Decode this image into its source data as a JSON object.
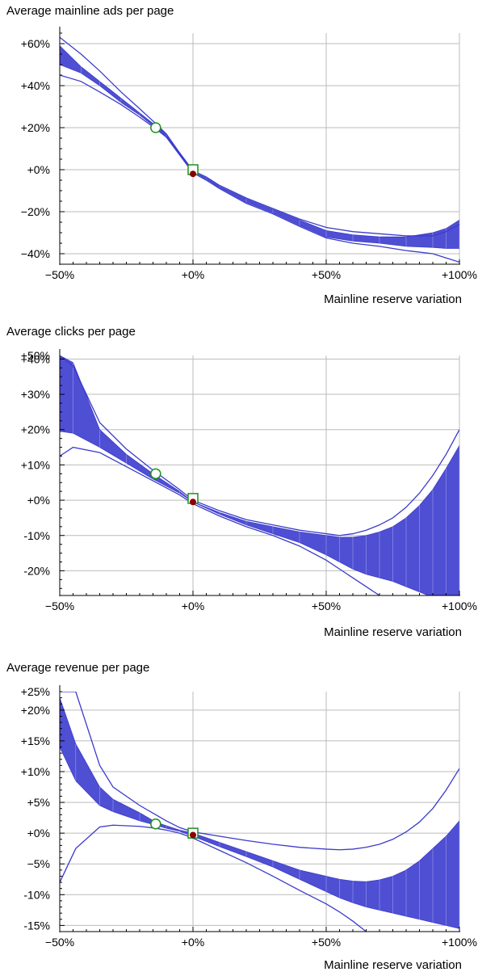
{
  "chart_data": [
    {
      "type": "area",
      "title": "Average mainline ads per page",
      "xlabel": "Mainline reserve variation",
      "ylabel": "",
      "xlim": [
        -50,
        100
      ],
      "ylim": [
        -45,
        65
      ],
      "x_ticks": [
        -50,
        0,
        50,
        100
      ],
      "x_tick_labels": [
        "−50%",
        "+0%",
        "+50%",
        "+100%"
      ],
      "y_ticks": [
        60,
        40,
        20,
        0,
        -20,
        -40
      ],
      "y_tick_labels": [
        "+60%",
        "+40%",
        "+20%",
        "+0%",
        "−20%",
        "−40%"
      ],
      "grid": true,
      "x": [
        -50,
        -42,
        -35,
        -27,
        -20,
        -14,
        -10,
        -5,
        0,
        5,
        10,
        20,
        30,
        40,
        50,
        60,
        70,
        80,
        90,
        95,
        100
      ],
      "band_upper": [
        59,
        49,
        42,
        34,
        27,
        21,
        17,
        8,
        -1,
        -4,
        -8,
        -14,
        -19,
        -24,
        -29,
        -31,
        -32,
        -32,
        -30,
        -28,
        -24
      ],
      "band_lower": [
        50,
        46,
        40,
        32,
        26,
        20,
        16,
        7.5,
        -1,
        -4.5,
        -8.5,
        -15.5,
        -20.5,
        -26.5,
        -32,
        -34,
        -35,
        -36.5,
        -37,
        -37.5,
        -37.5
      ],
      "outer_upper": [
        63,
        55,
        47,
        37,
        29,
        22,
        17,
        8,
        -0.5,
        -3.5,
        -7.5,
        -13.5,
        -18.5,
        -23.5,
        -27.5,
        -29.5,
        -30.5,
        -31.5,
        -31.5,
        -29.5,
        -26
      ],
      "outer_lower": [
        45,
        42,
        37,
        31,
        25,
        19.5,
        15.5,
        7,
        -1.5,
        -5,
        -9,
        -16,
        -21,
        -27,
        -32.5,
        -35,
        -36.5,
        -38.5,
        -40,
        -42,
        -44
      ],
      "marker_open_circle": {
        "x": -14,
        "y": 20
      },
      "marker_open_square": {
        "x": 0,
        "y": 0
      },
      "marker_filled_dot": {
        "x": 0,
        "y": -2
      },
      "colors": {
        "band": "#4f4fd4",
        "line": "#3b3bcc",
        "open_circle": "#1f8f1f",
        "open_square": "#1f8f1f",
        "filled_dot": "#8b0000",
        "grid": "#bbbbbb"
      }
    },
    {
      "type": "area",
      "title": "Average clicks per page",
      "xlabel": "Mainline reserve variation",
      "ylabel": "",
      "xlim": [
        -50,
        100
      ],
      "ylim": [
        -27,
        41
      ],
      "x_ticks": [
        -50,
        0,
        50,
        100
      ],
      "x_tick_labels": [
        "−50%",
        "+0%",
        "+50%",
        "+100%"
      ],
      "y_ticks": [
        40,
        30,
        20,
        10,
        0,
        -10,
        -20
      ],
      "y_tick_labels": [
        "+40%",
        "+30%",
        "+20%",
        "+10%",
        "+0%",
        "-10%",
        "-20%"
      ],
      "y_extra_label": "+50%",
      "grid": true,
      "x": [
        -50,
        -45,
        -35,
        -25,
        -15,
        -5,
        0,
        10,
        20,
        30,
        40,
        50,
        55,
        60,
        65,
        70,
        75,
        80,
        85,
        90,
        95,
        100
      ],
      "band_upper": [
        41,
        39,
        20,
        13,
        7.5,
        2.5,
        -0.5,
        -3.5,
        -6,
        -7.5,
        -9,
        -10,
        -10.5,
        -10.5,
        -10,
        -9,
        -7.5,
        -5,
        -1.5,
        3,
        9,
        15.5
      ],
      "band_lower": [
        19.5,
        19,
        15,
        10.5,
        6,
        2,
        -0.5,
        -4,
        -7,
        -9.5,
        -12,
        -15.5,
        -17.5,
        -19.5,
        -21,
        -22,
        -23,
        -24.5,
        -26,
        -27.5,
        -30,
        -33
      ],
      "outer_upper": [
        41,
        38,
        22,
        14.5,
        8.5,
        3,
        0,
        -3,
        -5.5,
        -7,
        -8.5,
        -9.5,
        -10,
        -9.5,
        -8.5,
        -7,
        -5,
        -2,
        2,
        7,
        13,
        20
      ],
      "outer_lower": [
        12.5,
        15,
        13.5,
        9.5,
        5.5,
        1.5,
        -1,
        -4.5,
        -7.5,
        -10,
        -13,
        -17,
        -19.5,
        -22,
        -24.5,
        -27,
        -30,
        -33.5,
        -37,
        -41,
        -45.5,
        -50
      ],
      "marker_open_circle": {
        "x": -14,
        "y": 7.5
      },
      "marker_open_square": {
        "x": 0,
        "y": 0.5
      },
      "marker_filled_dot": {
        "x": 0,
        "y": -0.5
      },
      "colors": {
        "band": "#4f4fd4",
        "line": "#3b3bcc",
        "open_circle": "#1f8f1f",
        "open_square": "#1f8f1f",
        "filled_dot": "#8b0000",
        "grid": "#bbbbbb"
      }
    },
    {
      "type": "area",
      "title": "Average revenue per page",
      "xlabel": "Mainline reserve variation",
      "ylabel": "",
      "xlim": [
        -50,
        100
      ],
      "ylim": [
        -16,
        23
      ],
      "x_ticks": [
        -50,
        0,
        50,
        100
      ],
      "x_tick_labels": [
        "−50%",
        "+0%",
        "+50%",
        "+100%"
      ],
      "y_ticks": [
        20,
        15,
        10,
        5,
        0,
        -5,
        -10,
        -15
      ],
      "y_tick_labels": [
        "+20%",
        "+15%",
        "+10%",
        "+5%",
        "+0%",
        "−5%",
        "-10%",
        "-15%"
      ],
      "y_extra_label": "+25%",
      "grid": true,
      "x": [
        -50,
        -44,
        -35,
        -30,
        -20,
        -14,
        -10,
        -5,
        0,
        10,
        20,
        30,
        40,
        50,
        55,
        60,
        65,
        70,
        75,
        80,
        85,
        90,
        95,
        100
      ],
      "band_upper": [
        22,
        14.5,
        7.5,
        5.5,
        3.3,
        1.8,
        1.2,
        0.5,
        0,
        -1.5,
        -3,
        -4.5,
        -6,
        -7,
        -7.5,
        -7.8,
        -7.9,
        -7.6,
        -7,
        -6,
        -4.5,
        -2.5,
        -0.5,
        2
      ],
      "band_lower": [
        14,
        8.5,
        4.5,
        3.5,
        2,
        1.3,
        0.8,
        0.3,
        -0.5,
        -2.2,
        -3.8,
        -5.5,
        -7.5,
        -9.5,
        -10.5,
        -11.3,
        -12,
        -12.5,
        -13,
        -13.5,
        -14,
        -14.5,
        -15,
        -15.5
      ],
      "outer_upper": [
        23,
        23,
        11,
        7.5,
        4.5,
        3,
        2,
        0.9,
        0.2,
        -0.5,
        -1.2,
        -1.8,
        -2.3,
        -2.6,
        -2.7,
        -2.6,
        -2.3,
        -1.8,
        -1,
        0.2,
        1.8,
        4,
        7,
        10.5
      ],
      "outer_lower": [
        -8,
        -2.5,
        1,
        1.3,
        1.1,
        0.8,
        0.5,
        0,
        -0.8,
        -2.8,
        -4.8,
        -7,
        -9.3,
        -11.5,
        -12.8,
        -14.3,
        -16,
        -18,
        -20,
        -22,
        -24,
        -26,
        -28,
        -30
      ],
      "marker_open_circle": {
        "x": -14,
        "y": 1.5
      },
      "marker_open_square": {
        "x": 0,
        "y": 0
      },
      "marker_filled_dot": {
        "x": 0,
        "y": -0.3
      },
      "colors": {
        "band": "#4f4fd4",
        "line": "#3b3bcc",
        "open_circle": "#1f8f1f",
        "open_square": "#1f8f1f",
        "filled_dot": "#8b0000",
        "grid": "#bbbbbb"
      }
    }
  ]
}
